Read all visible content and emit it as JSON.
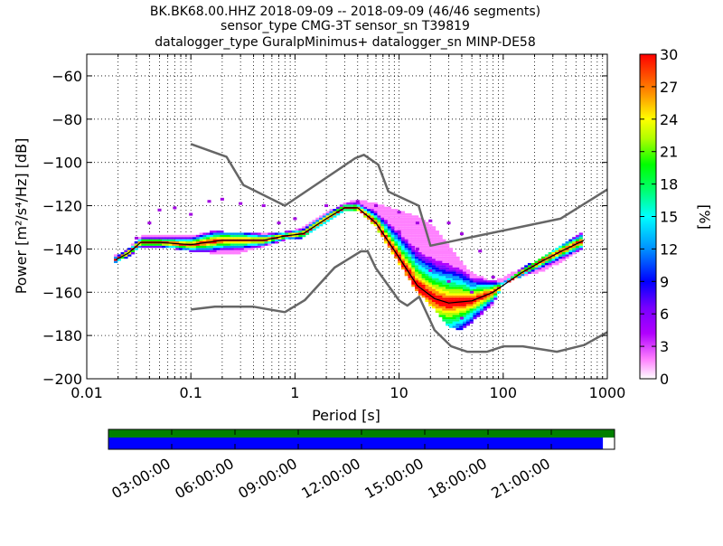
{
  "chart_data": {
    "type": "heatmap",
    "title_lines": [
      "BK.BK68.00.HHZ   2018-09-09 -- 2018-09-09  (46/46 segments)",
      "sensor_type CMG-3T sensor_sn T39819",
      "datalogger_type GuralpMinimus+ datalogger_sn MINP-DE58"
    ],
    "xlabel": "Period [s]",
    "ylabel": "Power [m²/s⁴/Hz] [dB]",
    "x_scale": "log",
    "xlim": [
      0.01,
      1000
    ],
    "ylim": [
      -200,
      -50
    ],
    "x_ticks": [
      0.01,
      0.1,
      1,
      10,
      100,
      1000
    ],
    "x_tick_labels": [
      "0.01",
      "0.1",
      "1",
      "10",
      "100",
      "1000"
    ],
    "y_ticks": [
      -60,
      -80,
      -100,
      -120,
      -140,
      -160,
      -180,
      -200
    ],
    "colorbar": {
      "label": "[%]",
      "range": [
        0,
        30
      ],
      "ticks": [
        0,
        3,
        6,
        9,
        12,
        15,
        18,
        21,
        24,
        27,
        30
      ]
    },
    "series": [
      {
        "kind": "mode",
        "color": "#000000",
        "x": [
          0.019,
          0.025,
          0.033,
          0.05,
          0.1,
          0.2,
          0.5,
          0.8,
          1.2,
          2,
          3,
          4,
          6,
          10,
          15,
          22,
          30,
          50,
          80,
          150,
          250,
          400,
          600
        ],
        "y": [
          -145,
          -142,
          -137,
          -137,
          -138,
          -136,
          -136,
          -134,
          -133,
          -126,
          -121,
          -121,
          -128,
          -144,
          -157,
          -163,
          -165,
          -164,
          -160,
          -151,
          -145,
          -140,
          -136
        ]
      },
      {
        "kind": "noise_model_high",
        "color": "#666666",
        "x": [
          0.1,
          0.22,
          0.32,
          0.8,
          3.8,
          4.6,
          6.3,
          7.9,
          15.4,
          20,
          354.8,
          1000
        ],
        "y": [
          -91.5,
          -97.4,
          -110.5,
          -120,
          -98,
          -96.5,
          -101,
          -113.5,
          -120,
          -138.5,
          -126,
          -112.5
        ]
      },
      {
        "kind": "noise_model_low",
        "color": "#666666",
        "x": [
          0.1,
          0.17,
          0.4,
          0.8,
          1.24,
          2.4,
          4.3,
          5,
          6,
          10,
          12,
          15.6,
          21.9,
          31.6,
          45,
          70,
          101,
          154,
          328,
          600,
          1000
        ],
        "y": [
          -168,
          -166.7,
          -166.7,
          -169.2,
          -163.7,
          -148.6,
          -141.1,
          -141.1,
          -149,
          -163.8,
          -166.2,
          -162.1,
          -177.5,
          -185,
          -187.5,
          -187.5,
          -185,
          -185,
          -187.5,
          -184.4,
          -178.5
        ]
      }
    ],
    "spread_band": {
      "x": [
        0.019,
        0.025,
        0.033,
        0.05,
        0.1,
        0.15,
        0.2,
        0.3,
        0.5,
        0.8,
        1.2,
        2,
        3,
        4,
        6,
        10,
        15,
        22,
        30,
        40,
        50,
        80,
        100,
        150,
        250,
        400,
        600
      ],
      "low": [
        -146,
        -144,
        -139,
        -139,
        -141,
        -142,
        -142,
        -142,
        -139,
        -136,
        -135,
        -128,
        -123,
        -122,
        -130,
        -147,
        -160,
        -168,
        -176,
        -178,
        -174,
        -166,
        -156,
        -153,
        -150,
        -145,
        -140
      ],
      "high": [
        -143,
        -140,
        -134,
        -134,
        -134,
        -132,
        -132,
        -133,
        -133,
        -132,
        -130,
        -123,
        -119,
        -117,
        -119,
        -122,
        -125,
        -130,
        -138,
        -146,
        -151,
        -155,
        -153,
        -149,
        -143,
        -137,
        -132
      ]
    },
    "scatter_outliers": [
      {
        "x": 0.03,
        "y": -135
      },
      {
        "x": 0.04,
        "y": -128
      },
      {
        "x": 0.05,
        "y": -122
      },
      {
        "x": 0.07,
        "y": -121
      },
      {
        "x": 0.1,
        "y": -124
      },
      {
        "x": 0.15,
        "y": -118
      },
      {
        "x": 0.2,
        "y": -117
      },
      {
        "x": 0.3,
        "y": -119
      },
      {
        "x": 0.5,
        "y": -120
      },
      {
        "x": 0.7,
        "y": -128
      },
      {
        "x": 1,
        "y": -126
      },
      {
        "x": 2,
        "y": -120
      },
      {
        "x": 4,
        "y": -118
      },
      {
        "x": 6,
        "y": -120
      },
      {
        "x": 10,
        "y": -123
      },
      {
        "x": 15,
        "y": -128
      },
      {
        "x": 20,
        "y": -127
      },
      {
        "x": 30,
        "y": -128
      },
      {
        "x": 40,
        "y": -133
      },
      {
        "x": 60,
        "y": -141
      },
      {
        "x": 80,
        "y": -153
      },
      {
        "x": 10,
        "y": -132
      },
      {
        "x": 15,
        "y": -140
      },
      {
        "x": 20,
        "y": -150
      },
      {
        "x": 30,
        "y": -155
      },
      {
        "x": 50,
        "y": -160
      },
      {
        "x": 40,
        "y": -172
      }
    ],
    "coverage": {
      "time_tick_labels": [
        "03:00:00",
        "06:00:00",
        "09:00:00",
        "12:00:00",
        "15:00:00",
        "18:00:00",
        "21:00:00"
      ],
      "data_fraction": 0.977
    }
  }
}
